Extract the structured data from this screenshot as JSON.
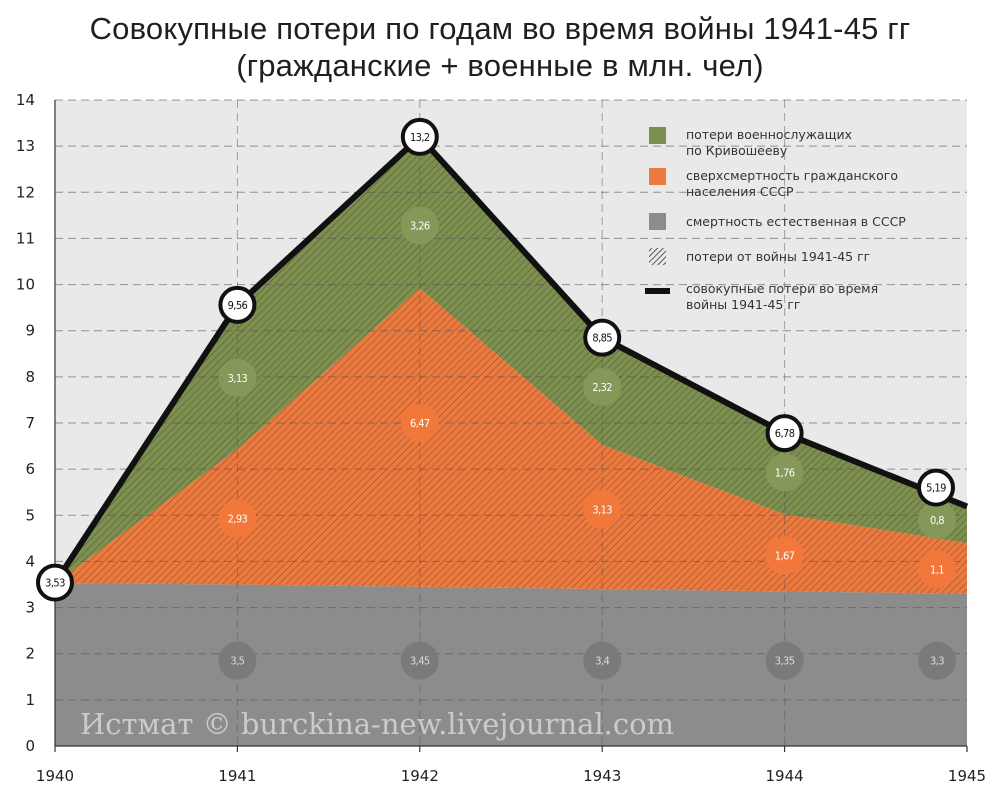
{
  "chart_data": {
    "type": "area",
    "title": "Совокупные потери по годам во время войны 1941-45 гг",
    "subtitle": "(гражданские + военные в млн. чел)",
    "xlabel": "",
    "ylabel": "",
    "x_ticks": [
      "1940",
      "1941",
      "1942",
      "1943",
      "1944",
      "1945"
    ],
    "y_ticks": [
      "0",
      "1",
      "2",
      "3",
      "4",
      "5",
      "6",
      "7",
      "8",
      "9",
      "10",
      "11",
      "12",
      "13",
      "14"
    ],
    "ylim": [
      0,
      14
    ],
    "grid": true,
    "legend_position": "top-right",
    "x": [
      1940,
      1941,
      1942,
      1943,
      1944,
      1945
    ],
    "series": [
      {
        "name": "смертность естественная в СССР",
        "color": "#8c8c8c",
        "values": [
          3.53,
          3.5,
          3.45,
          3.4,
          3.35,
          3.3
        ],
        "labels": [
          "",
          "3,5",
          "3,45",
          "3,4",
          "3,35",
          "3,3"
        ]
      },
      {
        "name": "сверхсмертность гражданского населения СССР",
        "color": "#ec7a3f",
        "values": [
          0,
          2.93,
          6.47,
          3.13,
          1.67,
          1.1
        ],
        "labels": [
          "",
          "2,93",
          "6,47",
          "3,13",
          "1,67",
          "1,1"
        ]
      },
      {
        "name": "потери военнослужащих по Кривошееву",
        "color": "#7e9050",
        "values": [
          0,
          3.13,
          3.26,
          2.32,
          1.76,
          0.8
        ],
        "labels": [
          "",
          "3,13",
          "3,26",
          "2,32",
          "1,76",
          "0,8"
        ]
      }
    ],
    "total": {
      "name": "совокупные потери во время войны 1941-45 гг",
      "values": [
        3.53,
        9.56,
        13.2,
        8.85,
        6.78,
        5.19
      ],
      "labels": [
        "3,53",
        "9,56",
        "13,2",
        "8,85",
        "6,78",
        "5,19"
      ]
    },
    "legend": [
      {
        "key": "military",
        "lines": [
          "потери военнослужащих",
          "по Кривошееву"
        ],
        "swatch": "square",
        "color": "#7e9050"
      },
      {
        "key": "civilian",
        "lines": [
          "сверхсмертность гражданского",
          "населения СССР"
        ],
        "swatch": "square",
        "color": "#ec7a3f"
      },
      {
        "key": "natural",
        "lines": [
          "смертность естественная в СССР"
        ],
        "swatch": "square",
        "color": "#8c8c8c"
      },
      {
        "key": "war-losses",
        "lines": [
          "потери от войны 1941-45 гг"
        ],
        "swatch": "hatch",
        "color": "#333333"
      },
      {
        "key": "total",
        "lines": [
          "совокупные потери во время",
          "войны 1941-45 гг"
        ],
        "swatch": "line",
        "color": "#111111"
      }
    ],
    "watermark": "Истмат © burckina-new.livejournal.com"
  }
}
